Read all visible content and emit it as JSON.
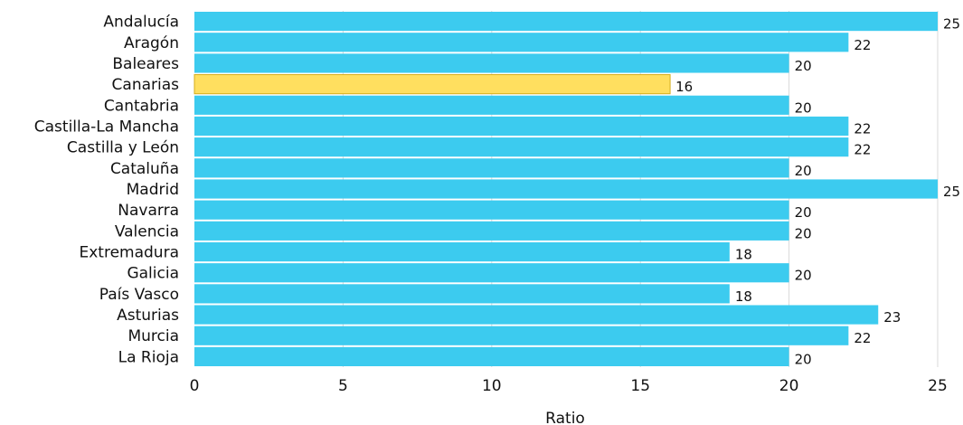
{
  "chart_data": {
    "type": "bar",
    "orientation": "horizontal",
    "categories": [
      "Andalucía",
      "Aragón",
      "Baleares",
      "Canarias",
      "Cantabria",
      "Castilla-La Mancha",
      "Castilla y León",
      "Cataluña",
      "Madrid",
      "Navarra",
      "Valencia",
      "Extremadura",
      "Galicia",
      "País Vasco",
      "Asturias",
      "Murcia",
      "La Rioja"
    ],
    "values": [
      25,
      22,
      20,
      16,
      20,
      22,
      22,
      20,
      25,
      20,
      20,
      18,
      20,
      18,
      23,
      22,
      20
    ],
    "highlight_category": "Canarias",
    "xlabel": "Ratio",
    "ylabel": "",
    "xlim": [
      0,
      25
    ],
    "xticks": [
      0,
      5,
      10,
      15,
      20,
      25
    ],
    "grid": "vertical",
    "data_labels": true,
    "colors": {
      "bar": "#3ccbef",
      "highlight": "#ffdf5f",
      "highlight_border": "#d4ad1e",
      "grid": "#d9d9d9",
      "text": "#111111"
    }
  }
}
